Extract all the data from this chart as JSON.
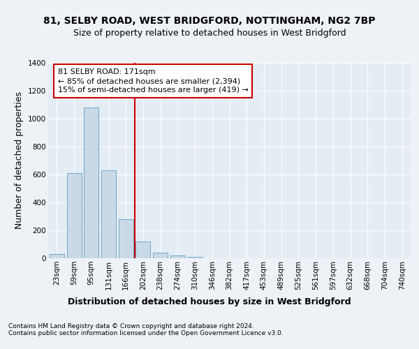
{
  "title_line1": "81, SELBY ROAD, WEST BRIDGFORD, NOTTINGHAM, NG2 7BP",
  "title_line2": "Size of property relative to detached houses in West Bridgford",
  "xlabel": "Distribution of detached houses by size in West Bridgford",
  "ylabel": "Number of detached properties",
  "categories": [
    "23sqm",
    "59sqm",
    "95sqm",
    "131sqm",
    "166sqm",
    "202sqm",
    "238sqm",
    "274sqm",
    "310sqm",
    "346sqm",
    "382sqm",
    "417sqm",
    "453sqm",
    "489sqm",
    "525sqm",
    "561sqm",
    "597sqm",
    "632sqm",
    "668sqm",
    "704sqm",
    "740sqm"
  ],
  "values": [
    30,
    610,
    1080,
    630,
    280,
    120,
    40,
    20,
    10,
    0,
    0,
    0,
    0,
    0,
    0,
    0,
    0,
    0,
    0,
    0,
    0
  ],
  "bar_color": "#c9d9e8",
  "bar_edge_color": "#6fa8c9",
  "vline_color": "#cc0000",
  "annotation_text": "81 SELBY ROAD: 171sqm\n← 85% of detached houses are smaller (2,394)\n15% of semi-detached houses are larger (419) →",
  "annotation_box_color": "#ffffff",
  "annotation_box_edge": "#cc0000",
  "ylim": [
    0,
    1400
  ],
  "yticks": [
    0,
    200,
    400,
    600,
    800,
    1000,
    1200,
    1400
  ],
  "footnote": "Contains HM Land Registry data © Crown copyright and database right 2024.\nContains public sector information licensed under the Open Government Licence v3.0.",
  "bg_color": "#eef2f7",
  "plot_bg_color": "#e4ecf4",
  "title_fontsize": 10,
  "subtitle_fontsize": 9,
  "axis_label_fontsize": 9,
  "tick_fontsize": 7.5,
  "annotation_fontsize": 8,
  "footnote_fontsize": 6.5
}
